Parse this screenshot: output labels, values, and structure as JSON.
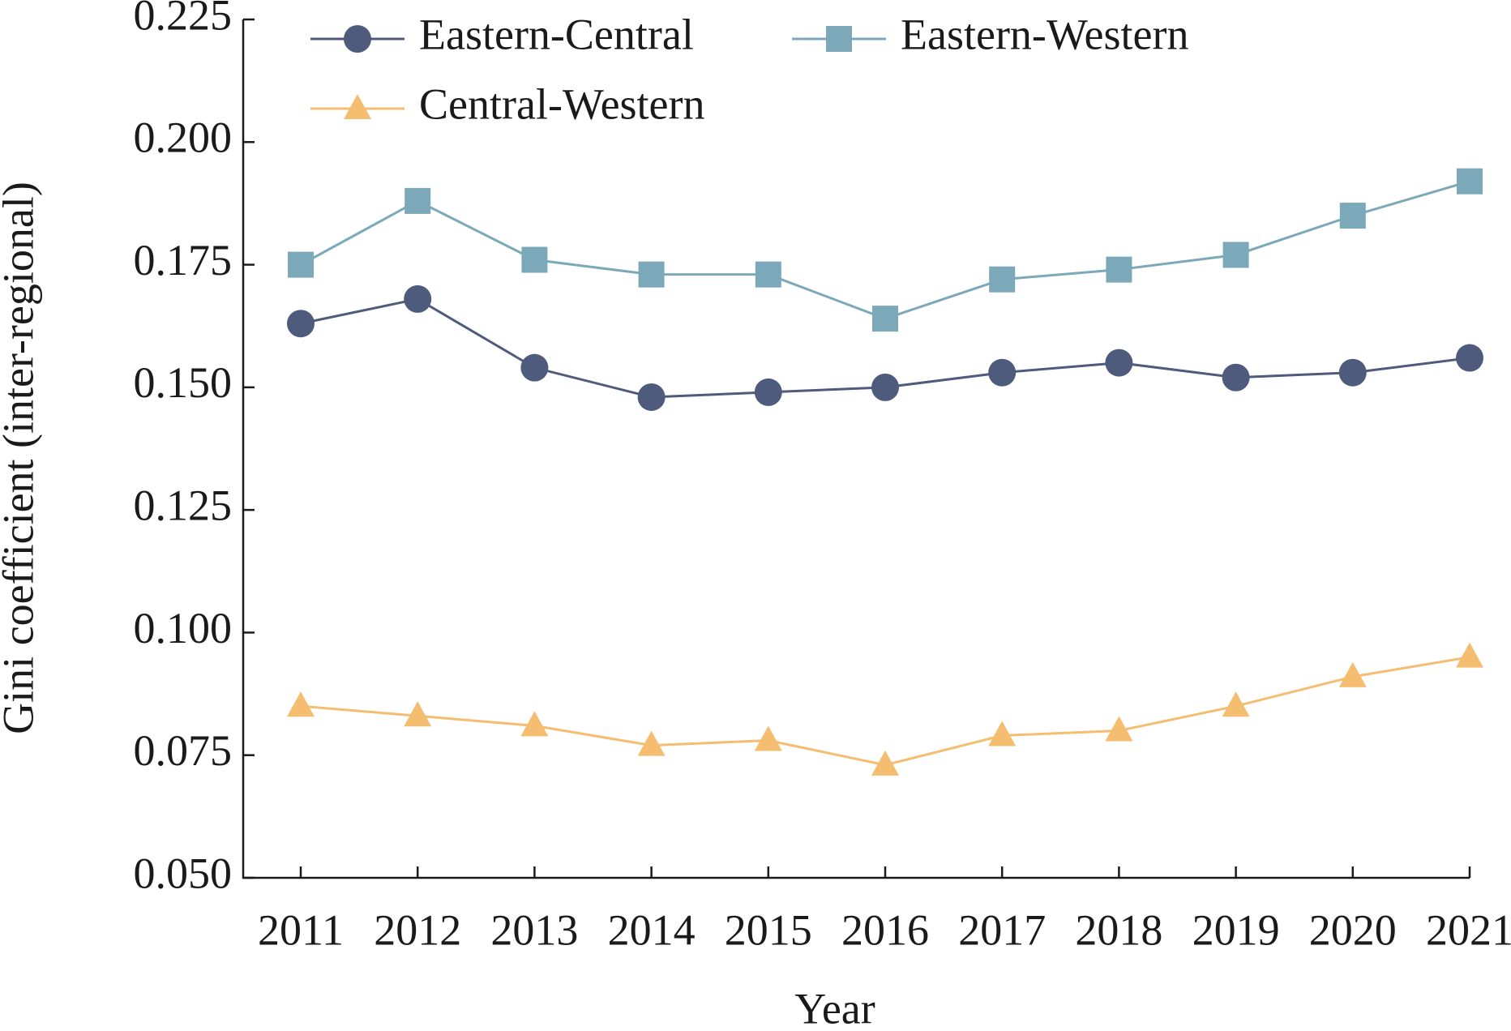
{
  "chart_data": {
    "type": "line",
    "x_label": "Year",
    "y_label": "Gini coefficient (inter-regional)",
    "categories": [
      "2011",
      "2012",
      "2013",
      "2014",
      "2015",
      "2016",
      "2017",
      "2018",
      "2019",
      "2020",
      "2021"
    ],
    "series": [
      {
        "name": "Eastern-Central",
        "color": "#4f5b7c",
        "marker": "circle",
        "values": [
          0.163,
          0.168,
          0.154,
          0.148,
          0.149,
          0.15,
          0.153,
          0.155,
          0.152,
          0.153,
          0.156
        ]
      },
      {
        "name": "Eastern-Western",
        "color": "#7ba9b9",
        "marker": "square",
        "values": [
          0.175,
          0.188,
          0.176,
          0.173,
          0.173,
          0.164,
          0.172,
          0.174,
          0.177,
          0.185,
          0.192
        ]
      },
      {
        "name": "Central-Western",
        "color": "#f4bd6f",
        "marker": "triangle",
        "values": [
          0.085,
          0.083,
          0.081,
          0.077,
          0.078,
          0.073,
          0.079,
          0.08,
          0.085,
          0.091,
          0.095
        ]
      }
    ],
    "ylim": [
      0.05,
      0.225
    ],
    "yticks": [
      {
        "value": 0.05,
        "label": "0.050"
      },
      0.075,
      {
        "value": 0.1,
        "label": "0.100"
      },
      0.125,
      {
        "value": 0.15,
        "label": "0.150"
      },
      0.175,
      {
        "value": 0.2,
        "label": "0.200"
      },
      0.225
    ],
    "grid": false
  }
}
